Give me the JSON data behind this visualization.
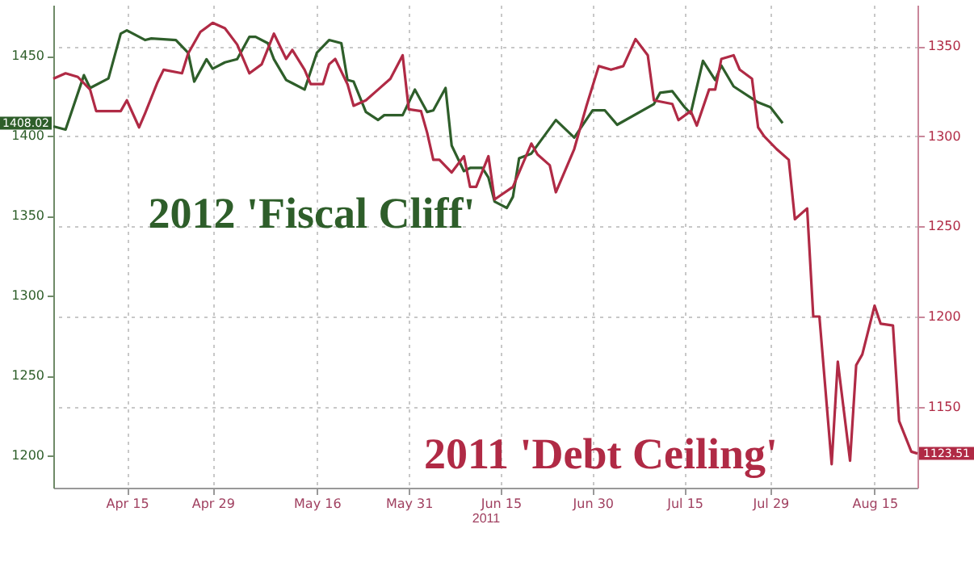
{
  "chart_data": {
    "type": "line",
    "xlabel": "2011",
    "xlim": [
      "2011-04-03",
      "2011-08-22"
    ],
    "xticks": [
      {
        "value": "2011-04-15",
        "label": "Apr 15"
      },
      {
        "value": "2011-04-29",
        "label": "Apr 29"
      },
      {
        "value": "2011-05-16",
        "label": "May 16"
      },
      {
        "value": "2011-05-31",
        "label": "May 31"
      },
      {
        "value": "2011-06-15",
        "label": "Jun 15"
      },
      {
        "value": "2011-06-30",
        "label": "Jun 30"
      },
      {
        "value": "2011-07-15",
        "label": "Jul 15"
      },
      {
        "value": "2011-07-29",
        "label": "Jul 29"
      },
      {
        "value": "2011-08-15",
        "label": "Aug 15"
      }
    ],
    "ylim": [
      1180,
      1482
    ],
    "yticks": [
      1200,
      1250,
      1300,
      1350,
      1400,
      1450
    ],
    "y2lim": [
      1105,
      1373
    ],
    "y2ticks": [
      1150,
      1200,
      1250,
      1300,
      1350
    ],
    "grid": true,
    "series": [
      {
        "name": "2012 'Fiscal Cliff'",
        "color": "#2e5e2a",
        "x": [
          "2011-04-03",
          "2011-04-05",
          "2011-04-08",
          "2011-04-09",
          "2011-04-12",
          "2011-04-14",
          "2011-04-15",
          "2011-04-18",
          "2011-04-19",
          "2011-04-23",
          "2011-04-25",
          "2011-04-26",
          "2011-04-28",
          "2011-04-29",
          "2011-05-01",
          "2011-05-03",
          "2011-05-05",
          "2011-05-06",
          "2011-05-08",
          "2011-05-09",
          "2011-05-11",
          "2011-05-12",
          "2011-05-14",
          "2011-05-16",
          "2011-05-18",
          "2011-05-20",
          "2011-05-21",
          "2011-05-22",
          "2011-05-24",
          "2011-05-26",
          "2011-05-27",
          "2011-05-30",
          "2011-06-01",
          "2011-06-03",
          "2011-06-04",
          "2011-06-06",
          "2011-06-07",
          "2011-06-09",
          "2011-06-10",
          "2011-06-12",
          "2011-06-13",
          "2011-06-14",
          "2011-06-16",
          "2011-06-17",
          "2011-06-18",
          "2011-06-20",
          "2011-06-24",
          "2011-06-27",
          "2011-06-30",
          "2011-07-02",
          "2011-07-04",
          "2011-07-10",
          "2011-07-11",
          "2011-07-13",
          "2011-07-15",
          "2011-07-16",
          "2011-07-18",
          "2011-07-20",
          "2011-07-21",
          "2011-07-23",
          "2011-07-27",
          "2011-07-29",
          "2011-07-31"
        ],
        "values": [
          1406,
          1404,
          1438,
          1430,
          1436,
          1464,
          1466,
          1460,
          1461,
          1460,
          1452,
          1434,
          1448,
          1442,
          1446,
          1448,
          1462,
          1462,
          1458,
          1448,
          1435,
          1433,
          1429,
          1452,
          1460,
          1458,
          1435,
          1434,
          1415,
          1410,
          1413,
          1413,
          1429,
          1415,
          1416,
          1430,
          1394,
          1378,
          1380,
          1380,
          1374,
          1359,
          1355,
          1362,
          1386,
          1389,
          1410,
          1399,
          1416,
          1416,
          1407,
          1420,
          1427,
          1428,
          1418,
          1414,
          1447,
          1435,
          1444,
          1431,
          1421,
          1418,
          1408
        ]
      },
      {
        "name": "2011 'Debt Ceiling'",
        "color": "#b02a45",
        "axis": "y2",
        "x": [
          "2011-04-03",
          "2011-04-05",
          "2011-04-07",
          "2011-04-09",
          "2011-04-10",
          "2011-04-14",
          "2011-04-15",
          "2011-04-17",
          "2011-04-18",
          "2011-04-20",
          "2011-04-21",
          "2011-04-24",
          "2011-04-25",
          "2011-04-27",
          "2011-04-29",
          "2011-05-01",
          "2011-05-03",
          "2011-05-05",
          "2011-05-07",
          "2011-05-09",
          "2011-05-11",
          "2011-05-12",
          "2011-05-14",
          "2011-05-15",
          "2011-05-17",
          "2011-05-18",
          "2011-05-19",
          "2011-05-21",
          "2011-05-22",
          "2011-05-24",
          "2011-05-26",
          "2011-05-28",
          "2011-05-30",
          "2011-05-31",
          "2011-06-02",
          "2011-06-03",
          "2011-06-04",
          "2011-06-05",
          "2011-06-07",
          "2011-06-09",
          "2011-06-10",
          "2011-06-11",
          "2011-06-13",
          "2011-06-14",
          "2011-06-17",
          "2011-06-20",
          "2011-06-21",
          "2011-06-23",
          "2011-06-24",
          "2011-06-27",
          "2011-06-29",
          "2011-07-01",
          "2011-07-03",
          "2011-07-05",
          "2011-07-07",
          "2011-07-09",
          "2011-07-10",
          "2011-07-13",
          "2011-07-14",
          "2011-07-16",
          "2011-07-17",
          "2011-07-19",
          "2011-07-20",
          "2011-07-21",
          "2011-07-23",
          "2011-07-24",
          "2011-07-26",
          "2011-07-27",
          "2011-07-28",
          "2011-07-30",
          "2011-08-01",
          "2011-08-02",
          "2011-08-04",
          "2011-08-05",
          "2011-08-06",
          "2011-08-08",
          "2011-08-09",
          "2011-08-11",
          "2011-08-12",
          "2011-08-13",
          "2011-08-15",
          "2011-08-16",
          "2011-08-18",
          "2011-08-19",
          "2011-08-21",
          "2011-08-22"
        ],
        "values": [
          1332,
          1335,
          1333,
          1326,
          1314,
          1314,
          1320,
          1305,
          1313,
          1330,
          1337,
          1335,
          1346,
          1358,
          1363,
          1360,
          1351,
          1335,
          1340,
          1357,
          1343,
          1348,
          1337,
          1329,
          1329,
          1340,
          1343,
          1329,
          1317,
          1320,
          1326,
          1332,
          1345,
          1315,
          1314,
          1302,
          1287,
          1287,
          1280,
          1289,
          1272,
          1272,
          1289,
          1265,
          1272,
          1296,
          1290,
          1284,
          1269,
          1293,
          1317,
          1339,
          1337,
          1339,
          1354,
          1345,
          1320,
          1318,
          1309,
          1314,
          1306,
          1326,
          1326,
          1343,
          1345,
          1337,
          1332,
          1305,
          1300,
          1293,
          1287,
          1254,
          1260,
          1200,
          1200,
          1118,
          1175,
          1120,
          1173,
          1179,
          1206,
          1196,
          1195,
          1142,
          1125,
          1124
        ]
      }
    ],
    "annotations": [
      "1408.02",
      "1123.51"
    ]
  }
}
